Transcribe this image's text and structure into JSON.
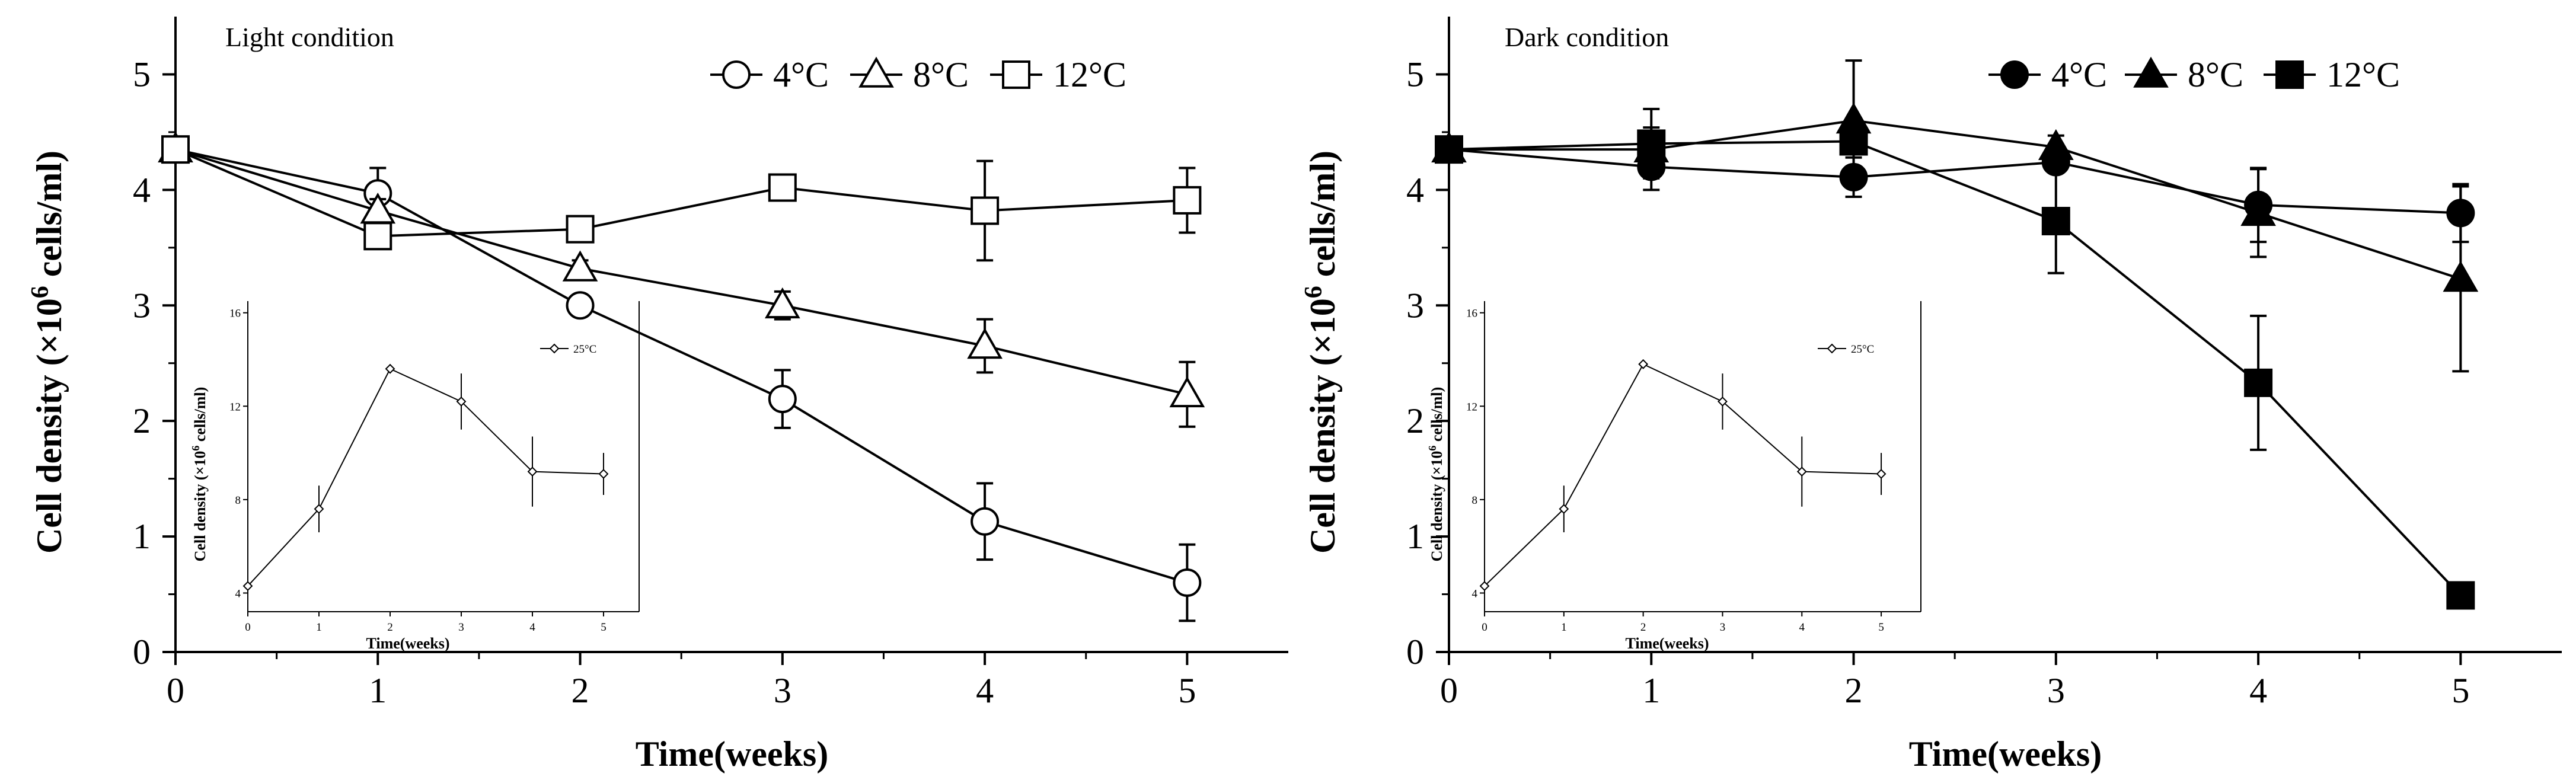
{
  "chart_data": [
    {
      "type": "line",
      "title": "Light condition",
      "xlabel": "Time(weeks)",
      "ylabel_main": "Cell density (×10",
      "ylabel_sup": "6",
      "ylabel_end": " cells/ml)",
      "xlim": [
        0,
        5.5
      ],
      "ylim": [
        0,
        5.5
      ],
      "x_ticks": [
        "0",
        "1",
        "2",
        "3",
        "4",
        "5"
      ],
      "y_ticks": [
        "0",
        "1",
        "2",
        "3",
        "4",
        "5"
      ],
      "series": [
        {
          "name": "4°C",
          "marker": "circle",
          "filled": false,
          "x": [
            0,
            1,
            2,
            3,
            4,
            5
          ],
          "values": [
            4.35,
            3.97,
            3.0,
            2.19,
            1.13,
            0.6
          ],
          "errors": [
            0.1,
            0.22,
            0.06,
            0.25,
            0.33,
            0.33
          ]
        },
        {
          "name": "8°C",
          "marker": "triangle",
          "filled": false,
          "x": [
            0,
            1,
            2,
            3,
            4,
            5
          ],
          "values": [
            4.35,
            3.82,
            3.32,
            3.0,
            2.65,
            2.23
          ],
          "errors": [
            0.1,
            0.1,
            0.07,
            0.12,
            0.23,
            0.28
          ]
        },
        {
          "name": "12°C",
          "marker": "square",
          "filled": false,
          "x": [
            0,
            1,
            2,
            3,
            4,
            5
          ],
          "values": [
            4.35,
            3.6,
            3.66,
            4.02,
            3.82,
            3.91
          ],
          "errors": [
            0.1,
            0.07,
            0.06,
            0.07,
            0.43,
            0.28
          ]
        }
      ],
      "inset": {
        "xlabel": "Time(weeks)",
        "ylabel_main": "Cell density (×10",
        "ylabel_sup": "6",
        "ylabel_end": " cells/ml)",
        "legend": "25°C",
        "x_ticks": [
          "0",
          "1",
          "2",
          "3",
          "4",
          "5"
        ],
        "y_ticks": [
          "4",
          "8",
          "12",
          "16"
        ],
        "xlim": [
          0,
          5.5
        ],
        "ylim": [
          3.2,
          16.5
        ],
        "x": [
          0,
          1,
          2,
          3,
          4,
          5
        ],
        "values": [
          4.3,
          7.6,
          13.6,
          12.2,
          9.2,
          9.1
        ],
        "errors": [
          0.3,
          1.0,
          0.2,
          1.2,
          1.5,
          0.9
        ]
      }
    },
    {
      "type": "line",
      "title": "Dark condition",
      "xlabel": "Time(weeks)",
      "ylabel_main": "Cell density (×10",
      "ylabel_sup": "6",
      "ylabel_end": " cells/ml)",
      "xlim": [
        0,
        5.5
      ],
      "ylim": [
        0,
        5.5
      ],
      "x_ticks": [
        "0",
        "1",
        "2",
        "3",
        "4",
        "5"
      ],
      "y_ticks": [
        "0",
        "1",
        "2",
        "3",
        "4",
        "5"
      ],
      "series": [
        {
          "name": "4°C",
          "marker": "circle",
          "filled": true,
          "x": [
            0,
            1,
            2,
            3,
            4,
            5
          ],
          "values": [
            4.35,
            4.2,
            4.11,
            4.24,
            3.87,
            3.8
          ],
          "errors": [
            0.06,
            0.1,
            0.17,
            0.08,
            0.32,
            0.25
          ]
        },
        {
          "name": "8°C",
          "marker": "triangle",
          "filled": true,
          "x": [
            0,
            1,
            2,
            3,
            4,
            5
          ],
          "values": [
            4.35,
            4.35,
            4.6,
            4.37,
            3.8,
            3.23
          ],
          "errors": [
            0.06,
            0.35,
            0.52,
            0.1,
            0.38,
            0.8
          ]
        },
        {
          "name": "12°C",
          "marker": "square",
          "filled": true,
          "x": [
            0,
            1,
            2,
            3,
            4,
            5
          ],
          "values": [
            4.35,
            4.4,
            4.42,
            3.73,
            2.33,
            0.49
          ],
          "errors": [
            0.06,
            0.14,
            0.1,
            0.45,
            0.58,
            0.03
          ]
        }
      ],
      "inset": {
        "xlabel": "Time(weeks)",
        "ylabel_main": "Cell density (×10",
        "ylabel_sup": "6",
        "ylabel_end": " cells/ml)",
        "legend": "25°C",
        "x_ticks": [
          "0",
          "1",
          "2",
          "3",
          "4",
          "5"
        ],
        "y_ticks": [
          "4",
          "8",
          "12",
          "16"
        ],
        "xlim": [
          0,
          5.5
        ],
        "ylim": [
          3.2,
          16.5
        ],
        "x": [
          0,
          1,
          2,
          3,
          4,
          5
        ],
        "values": [
          4.3,
          7.6,
          13.8,
          12.2,
          9.2,
          9.1
        ],
        "errors": [
          0.3,
          1.0,
          0.2,
          1.2,
          1.5,
          0.9
        ]
      }
    }
  ]
}
